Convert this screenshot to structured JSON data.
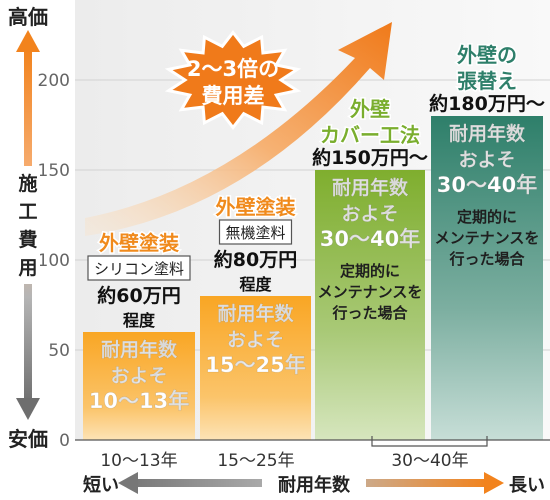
{
  "chart_data": {
    "type": "bar",
    "ylabel": "施工費用",
    "y_top_label": "高価",
    "y_bottom_label": "安価",
    "ylim": [
      0,
      240
    ],
    "yticks": [
      0,
      50,
      100,
      150,
      200
    ],
    "x_axis_label": "耐用年数",
    "x_left_label": "短い",
    "x_right_label": "長い",
    "bars": [
      {
        "category": "10〜13年",
        "value": 60,
        "color": "#F7A21B",
        "method": [
          "外壁塗装"
        ],
        "material": "シリコン塗料",
        "cost": [
          "約60万円",
          "程度"
        ],
        "body": [
          "耐用年数",
          "およそ",
          "10〜13年"
        ]
      },
      {
        "category": "15〜25年",
        "value": 80,
        "color": "#F7A21B",
        "method": [
          "外壁塗装"
        ],
        "material": "無機塗料",
        "cost": [
          "約80万円",
          "程度"
        ],
        "body": [
          "耐用年数",
          "およそ",
          "15〜25年"
        ]
      },
      {
        "category": "30〜40年",
        "value": 150,
        "color": "#8DB53C",
        "method": [
          "外壁",
          "カバー工法"
        ],
        "cost": [
          "約150万円〜"
        ],
        "body": [
          "耐用年数",
          "およそ",
          "30〜40年",
          "定期的に",
          "メンテナンスを",
          "行った場合"
        ]
      },
      {
        "category": "30〜40年",
        "value": 180,
        "color": "#2E7F6A",
        "method": [
          "外壁の",
          "張替え"
        ],
        "cost": [
          "約180万円〜"
        ],
        "body": [
          "耐用年数",
          "およそ",
          "30〜40年",
          "定期的に",
          "メンテナンスを",
          "行った場合"
        ]
      }
    ],
    "x_tick_labels": [
      "10〜13年",
      "15〜25年",
      "30〜40年"
    ],
    "callout": [
      "2〜3倍の",
      "費用差"
    ],
    "colors": {
      "paint_bar": "#F7A21B",
      "cover_bar": "#8DB53C",
      "replace_bar": "#2E7F6A",
      "arrow": "#F08A1C",
      "method_orange": "#F08A1C",
      "method_green": "#7AAE2E",
      "method_teal": "#2E7F6A"
    }
  }
}
